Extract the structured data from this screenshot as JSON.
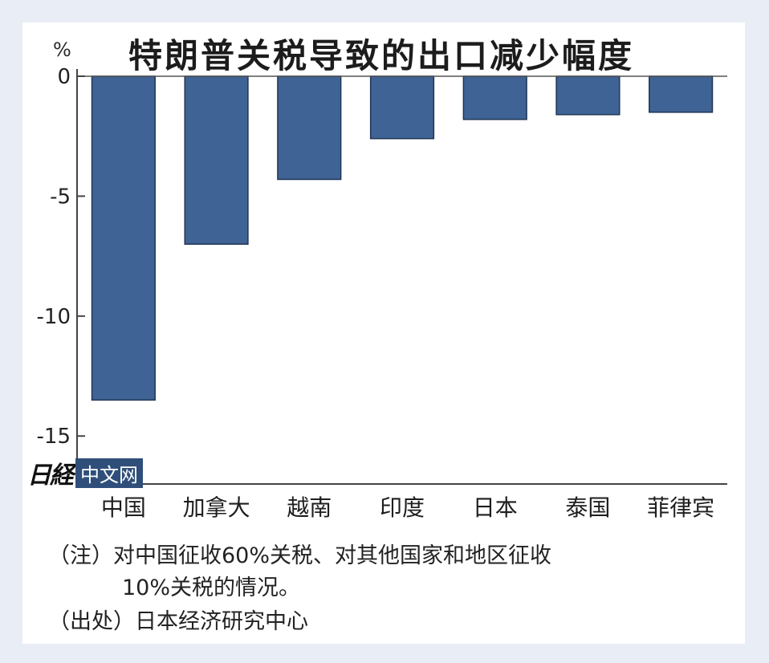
{
  "chart_data": {
    "type": "bar",
    "title": "特朗普关税导致的出口减少幅度",
    "unit_label": "%",
    "categories": [
      "中国",
      "加拿大",
      "越南",
      "印度",
      "日本",
      "泰国",
      "菲律宾"
    ],
    "values": [
      -13.5,
      -7.0,
      -4.3,
      -2.6,
      -1.8,
      -1.6,
      -1.5
    ],
    "ylim": [
      -17,
      0
    ],
    "yticks": [
      0,
      -5,
      -10,
      -15
    ],
    "bar_color": "#3f6394",
    "grid": false
  },
  "notes": {
    "line1": "（注）对中国征收60%关税、对其他国家和地区征收",
    "line2": "10%关税的情况。",
    "source": "（出处）日本经济研究中心"
  },
  "logo": {
    "mark": "日経",
    "tag": "中文网"
  }
}
